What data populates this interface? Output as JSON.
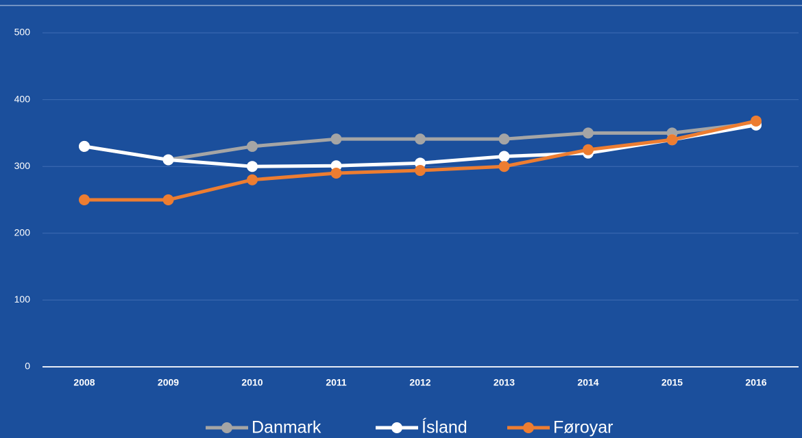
{
  "chart_data": {
    "type": "line",
    "categories": [
      "2008",
      "2009",
      "2010",
      "2011",
      "2012",
      "2013",
      "2014",
      "2015",
      "2016"
    ],
    "series": [
      {
        "name": "Danmark",
        "color": "#a5a5a5",
        "values": [
          330,
          310,
          330,
          341,
          341,
          341,
          350,
          350,
          365
        ]
      },
      {
        "name": "Ísland",
        "color": "#ffffff",
        "values": [
          330,
          310,
          300,
          301,
          305,
          315,
          320,
          340,
          362
        ]
      },
      {
        "name": "Føroyar",
        "color": "#ed7d31",
        "values": [
          250,
          250,
          280,
          290,
          294,
          300,
          325,
          340,
          368
        ]
      }
    ],
    "ylim": [
      0,
      500
    ],
    "yticks": [
      0,
      100,
      200,
      300,
      400,
      500
    ],
    "grid": true,
    "legend": "bottom"
  }
}
